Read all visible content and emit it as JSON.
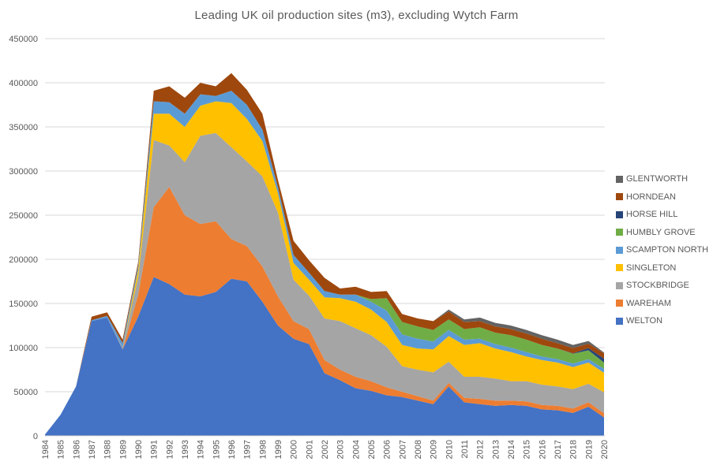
{
  "title": "Leading UK oil production sites (m3), excluding Wytch Farm",
  "chart_data": {
    "type": "area",
    "stacked": true,
    "title": "Leading UK oil production sites (m3), excluding Wytch Farm",
    "xlabel": "",
    "ylabel": "",
    "ylim": [
      0,
      450000
    ],
    "ytick_step": 50000,
    "y_tick_labels": [
      "0",
      "50000",
      "100000",
      "150000",
      "200000",
      "250000",
      "300000",
      "350000",
      "400000",
      "450000"
    ],
    "grid": "horizontal",
    "gridline_color": "#D9D9D9",
    "axis_text_color": "#595959",
    "legend_position": "right",
    "categories": [
      1984,
      1985,
      1986,
      1987,
      1988,
      1989,
      1990,
      1991,
      1992,
      1993,
      1994,
      1995,
      1996,
      1997,
      1998,
      1999,
      2000,
      2001,
      2002,
      2003,
      2004,
      2005,
      2006,
      2007,
      2008,
      2009,
      2010,
      2011,
      2012,
      2013,
      2014,
      2015,
      2016,
      2017,
      2018,
      2019,
      2020
    ],
    "series": [
      {
        "name": "WELTON",
        "color": "#4472C4",
        "values": [
          1500,
          24000,
          56000,
          130000,
          134000,
          98000,
          135000,
          180000,
          172000,
          160000,
          158000,
          163000,
          178000,
          175000,
          152000,
          125000,
          110000,
          104000,
          71000,
          63000,
          54000,
          51000,
          46000,
          44000,
          40000,
          36000,
          56000,
          38000,
          36000,
          34000,
          35000,
          34000,
          30000,
          29000,
          26000,
          33000,
          21000
        ]
      },
      {
        "name": "WAREHAM",
        "color": "#ED7D31",
        "values": [
          0,
          0,
          0,
          0,
          0,
          0,
          25000,
          79000,
          110000,
          90000,
          82000,
          80000,
          45000,
          40000,
          40000,
          33000,
          20000,
          17000,
          15000,
          12000,
          13000,
          11000,
          9000,
          6000,
          5000,
          4000,
          4000,
          5000,
          6000,
          6000,
          5000,
          5000,
          5000,
          5000,
          5000,
          5000,
          4500
        ]
      },
      {
        "name": "STOCKBRIDGE",
        "color": "#A5A5A5",
        "values": [
          0,
          0,
          0,
          0,
          0,
          2000,
          20000,
          76000,
          47000,
          60000,
          100000,
          100000,
          104000,
          96000,
          102000,
          95000,
          47000,
          38000,
          47000,
          55000,
          55000,
          52000,
          46000,
          29000,
          30000,
          32000,
          24000,
          24000,
          25000,
          25000,
          22000,
          23000,
          23000,
          22000,
          22000,
          21000,
          24000
        ]
      },
      {
        "name": "SINGLETON",
        "color": "#FFC000",
        "values": [
          0,
          0,
          0,
          0,
          0,
          0,
          8000,
          30000,
          36000,
          40000,
          34000,
          36000,
          50000,
          48000,
          40000,
          22000,
          19000,
          18000,
          24000,
          26000,
          30000,
          29000,
          28000,
          24000,
          24000,
          26000,
          29000,
          36000,
          38000,
          34000,
          33000,
          28000,
          28000,
          27000,
          25000,
          24000,
          22000
        ]
      },
      {
        "name": "SCAMPTON NORTH",
        "color": "#5B9BD5",
        "values": [
          0,
          0,
          0,
          1000,
          2000,
          5000,
          5000,
          14000,
          13000,
          15000,
          13000,
          6000,
          14000,
          16000,
          13000,
          7000,
          9000,
          8000,
          7000,
          4000,
          8000,
          9000,
          13000,
          12000,
          11000,
          9000,
          7000,
          6000,
          5000,
          5000,
          5000,
          5000,
          4000,
          4000,
          4000,
          4000,
          4500
        ]
      },
      {
        "name": "HUMBLY GROVE",
        "color": "#70AD47",
        "values": [
          0,
          0,
          0,
          0,
          0,
          0,
          0,
          0,
          0,
          0,
          0,
          0,
          0,
          0,
          0,
          0,
          0,
          0,
          0,
          0,
          0,
          3000,
          14000,
          14000,
          14000,
          13000,
          12000,
          12000,
          13000,
          13000,
          14000,
          14000,
          13000,
          12000,
          11000,
          10000,
          7000
        ]
      },
      {
        "name": "HORSE HILL",
        "color": "#264478",
        "values": [
          0,
          0,
          0,
          0,
          0,
          0,
          0,
          0,
          0,
          0,
          0,
          0,
          0,
          0,
          0,
          0,
          0,
          0,
          0,
          0,
          0,
          0,
          0,
          0,
          0,
          0,
          0,
          0,
          0,
          0,
          0,
          0,
          0,
          0,
          500,
          2500,
          4500
        ]
      },
      {
        "name": "HORNDEAN",
        "color": "#9E480E",
        "values": [
          0,
          0,
          0,
          4000,
          4000,
          4000,
          4000,
          12000,
          18000,
          18000,
          13000,
          11000,
          20000,
          17000,
          18000,
          8000,
          16000,
          14000,
          15000,
          7000,
          9000,
          8000,
          8000,
          9000,
          9000,
          10000,
          9000,
          8000,
          7000,
          7000,
          7000,
          7000,
          7000,
          6000,
          6000,
          5000,
          6000
        ]
      },
      {
        "name": "GLENTWORTH",
        "color": "#636363",
        "values": [
          0,
          0,
          0,
          0,
          0,
          0,
          0,
          0,
          0,
          0,
          0,
          0,
          0,
          0,
          0,
          0,
          0,
          0,
          0,
          0,
          0,
          0,
          0,
          0,
          0,
          0,
          2000,
          3000,
          4000,
          4000,
          4000,
          4000,
          4000,
          4000,
          3500,
          3000,
          1000
        ]
      }
    ],
    "legend_order_top_to_bottom": [
      "GLENTWORTH",
      "HORNDEAN",
      "HORSE HILL",
      "HUMBLY GROVE",
      "SCAMPTON NORTH",
      "SINGLETON",
      "STOCKBRIDGE",
      "WAREHAM",
      "WELTON"
    ]
  }
}
